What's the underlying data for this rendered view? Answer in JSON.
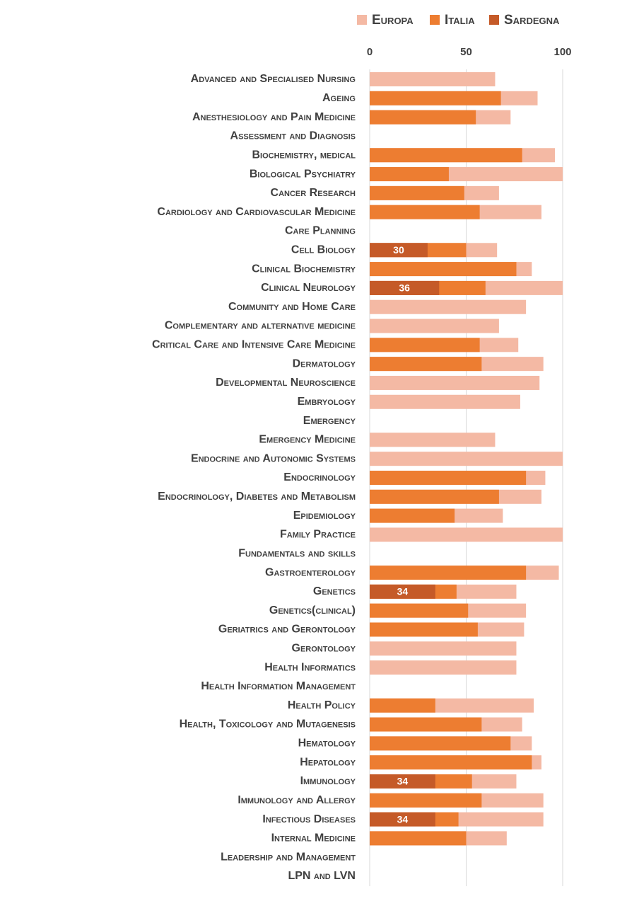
{
  "chart_data": {
    "type": "bar",
    "orientation": "horizontal",
    "overlap": true,
    "categories": [
      "Advanced and Specialised Nursing",
      "Ageing",
      "Anesthesiology and Pain Medicine",
      "Assessment and Diagnosis",
      "Biochemistry, medical",
      "Biological Psychiatry",
      "Cancer Research",
      "Cardiology and Cardiovascular Medicine",
      "Care Planning",
      "Cell Biology",
      "Clinical Biochemistry",
      "Clinical Neurology",
      "Community and Home Care",
      "Complementary and alternative medicine",
      "Critical Care and Intensive Care Medicine",
      "Dermatology",
      "Developmental Neuroscience",
      "Embryology",
      "Emergency",
      "Emergency Medicine",
      "Endocrine and Autonomic Systems",
      "Endocrinology",
      "Endocrinology, Diabetes and Metabolism",
      "Epidemiology",
      "Family Practice",
      "Fundamentals and skills",
      "Gastroenterology",
      "Genetics",
      "Genetics(clinical)",
      "Geriatrics and Gerontology",
      "Gerontology",
      "Health Informatics",
      "Health Information Management",
      "Health Policy",
      "Health, Toxicology and Mutagenesis",
      "Hematology",
      "Hepatology",
      "Immunology",
      "Immunology and Allergy",
      "Infectious Diseases",
      "Internal Medicine",
      "Leadership and Management",
      "LPN and LVN"
    ],
    "series": [
      {
        "name": "Europa",
        "color": "#f4b9a4",
        "values": [
          65,
          87,
          73,
          null,
          96,
          100,
          67,
          89,
          null,
          66,
          84,
          100,
          81,
          67,
          77,
          90,
          88,
          78,
          null,
          65,
          100,
          91,
          89,
          69,
          100,
          null,
          98,
          76,
          81,
          80,
          76,
          76,
          null,
          85,
          79,
          84,
          89,
          76,
          90,
          90,
          71,
          null,
          null
        ]
      },
      {
        "name": "Italia",
        "color": "#ed7d31",
        "values": [
          null,
          68,
          55,
          null,
          79,
          41,
          49,
          57,
          null,
          50,
          76,
          60,
          null,
          null,
          57,
          58,
          null,
          null,
          null,
          null,
          null,
          81,
          67,
          44,
          null,
          null,
          81,
          45,
          51,
          56,
          null,
          null,
          null,
          34,
          58,
          73,
          84,
          53,
          58,
          46,
          50,
          null,
          null
        ]
      },
      {
        "name": "Sardegna",
        "color": "#c55a28",
        "show_labels": true,
        "values": [
          null,
          null,
          null,
          null,
          null,
          null,
          null,
          null,
          null,
          30,
          null,
          36,
          null,
          null,
          null,
          null,
          null,
          null,
          null,
          null,
          null,
          null,
          null,
          null,
          null,
          null,
          null,
          34,
          null,
          null,
          null,
          null,
          null,
          null,
          null,
          null,
          null,
          34,
          null,
          34,
          null,
          null,
          null
        ]
      }
    ],
    "xlim": [
      0,
      100
    ],
    "xticks": [
      0,
      50,
      100
    ],
    "grid": true,
    "legend": "top-right"
  }
}
